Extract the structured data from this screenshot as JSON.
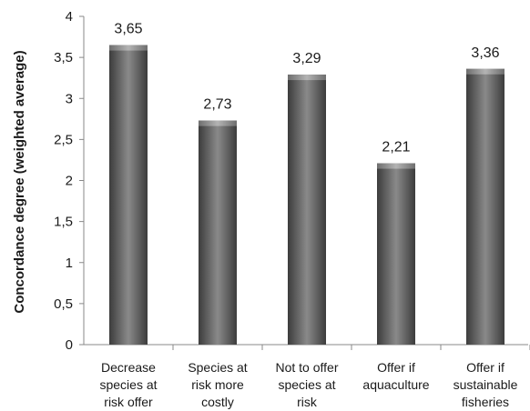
{
  "chart_data": {
    "type": "bar",
    "title": "",
    "ylabel": "Concordance degree (weighted average)",
    "xlabel": "",
    "ylim": [
      0,
      4
    ],
    "y_ticks": [
      "0",
      "0,5",
      "1",
      "1,5",
      "2",
      "2,5",
      "3",
      "3,5",
      "4"
    ],
    "categories": [
      [
        "Decrease",
        "species at",
        "risk offer"
      ],
      [
        "Species at",
        "risk more",
        "costly"
      ],
      [
        "Not to offer",
        "species at",
        "risk"
      ],
      [
        "Offer if",
        "aquaculture"
      ],
      [
        "Offer if",
        "sustainable",
        "fisheries"
      ]
    ],
    "values": [
      3.65,
      2.73,
      3.29,
      2.21,
      3.36
    ],
    "value_labels": [
      "3,65",
      "2,73",
      "3,29",
      "2,21",
      "3,36"
    ],
    "grid": false,
    "legend": "none",
    "colors": {
      "bar_dark": "#3c3c3c",
      "bar_mid": "#8a8a8a",
      "bar_light": "#b4b4b4",
      "axis": "#888888",
      "text": "#1a1a1a"
    }
  }
}
